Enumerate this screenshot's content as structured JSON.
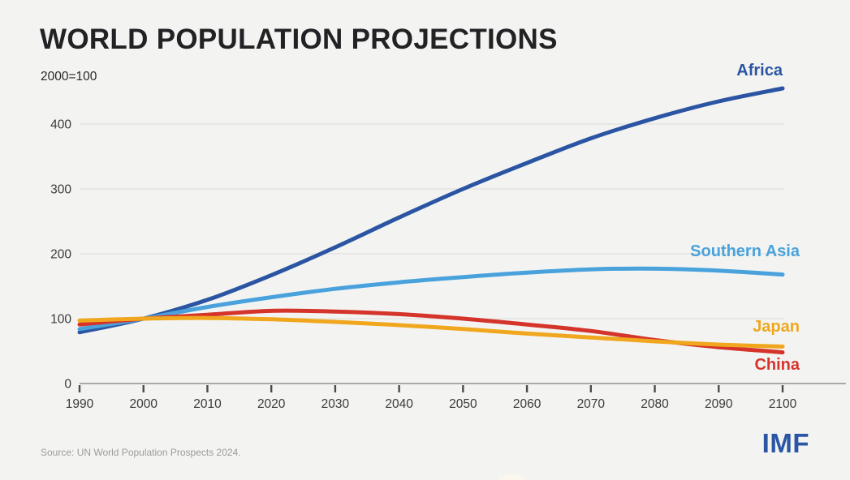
{
  "title": "WORLD POPULATION PROJECTIONS",
  "index_note": "2000=100",
  "source_note": "Source: UN World Population Prospects 2024.",
  "logo_text": "IMF",
  "colors": {
    "background": "#f3f4f2",
    "grid": "#e3e3e1",
    "axis_line": "#a9a9a9",
    "tick_mark": "#4b4b4b",
    "tick_label": "#3a3a3a",
    "logo_blue": "#2b56a4"
  },
  "chart_data": {
    "type": "line",
    "title": "WORLD POPULATION PROJECTIONS",
    "subtitle": "2000=100",
    "x": [
      1990,
      2000,
      2010,
      2020,
      2030,
      2040,
      2050,
      2060,
      2070,
      2080,
      2090,
      2100
    ],
    "series": [
      {
        "name": "Africa",
        "color": "#2b55a2",
        "values": [
          79,
          100,
          129,
          167,
          210,
          256,
          300,
          340,
          378,
          409,
          435,
          455
        ]
      },
      {
        "name": "Southern Asia",
        "color": "#4aa2dc",
        "values": [
          84,
          100,
          118,
          133,
          146,
          156,
          164,
          171,
          176,
          177,
          174,
          168
        ]
      },
      {
        "name": "China",
        "color": "#d5342b",
        "values": [
          91,
          100,
          106,
          112,
          111,
          107,
          100,
          91,
          81,
          67,
          56,
          48
        ]
      },
      {
        "name": "Japan",
        "color": "#f0a71e",
        "values": [
          97,
          100,
          101,
          99,
          95,
          90,
          84,
          77,
          71,
          65,
          60,
          57
        ]
      }
    ],
    "xticks": [
      1990,
      2000,
      2010,
      2020,
      2030,
      2040,
      2050,
      2060,
      2070,
      2080,
      2090,
      2100
    ],
    "yticks": [
      0,
      100,
      200,
      300,
      400
    ],
    "xlim": [
      1990,
      2100
    ],
    "ylim": [
      0,
      480
    ],
    "grid": "horizontal",
    "legend_position": "end-of-line-labels"
  }
}
